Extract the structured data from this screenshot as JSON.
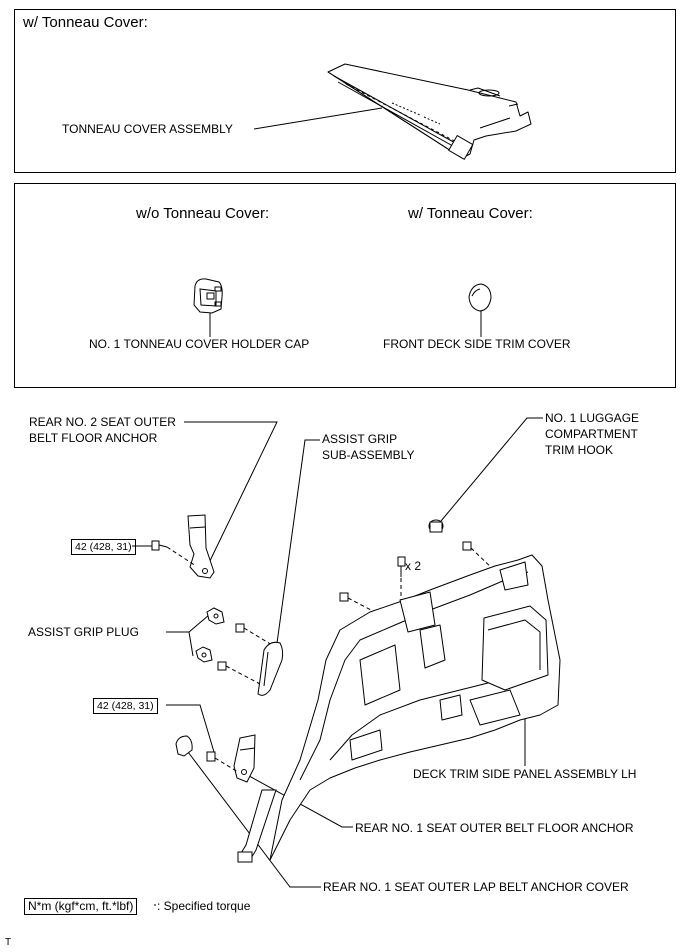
{
  "panel_top": {
    "header": "w/ Tonneau Cover:",
    "callout": "TONNEAU COVER ASSEMBLY"
  },
  "panel_middle": {
    "header_left": "w/o Tonneau Cover:",
    "header_right": "w/ Tonneau Cover:",
    "callout_left": "NO. 1 TONNEAU COVER HOLDER CAP",
    "callout_right": "FRONT DECK SIDE TRIM COVER"
  },
  "main": {
    "rear2_anchor": [
      "REAR NO. 2 SEAT OUTER",
      "BELT FLOOR ANCHOR"
    ],
    "assist_grip": [
      "ASSIST GRIP",
      "SUB-ASSEMBLY"
    ],
    "luggage_hook": [
      "NO. 1 LUGGAGE",
      "COMPARTMENT",
      "TRIM HOOK"
    ],
    "torque_1": "42 (428, 31)",
    "torque_2": "42 (428, 31)",
    "qty": "x 2",
    "grip_plug": "ASSIST GRIP PLUG",
    "deck_panel": "DECK TRIM SIDE PANEL ASSEMBLY LH",
    "rear1_anchor": "REAR NO. 1 SEAT OUTER BELT FLOOR ANCHOR",
    "rear1_lap_cover": "REAR NO. 1 SEAT OUTER LAP BELT ANCHOR COVER"
  },
  "legend": {
    "box": "N*m (kgf*cm, ft.*lbf)",
    "text": ": Specified torque"
  },
  "corner_mark": "T"
}
